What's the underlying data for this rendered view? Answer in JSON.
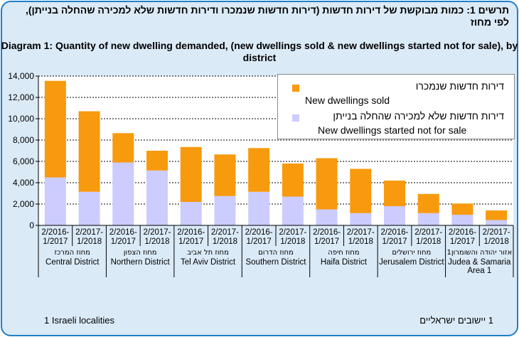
{
  "title_he": "תרשים 1: כמות מבוקשת של דירות חדשות (דירות חדשות שנמכרו ודירות חדשות שלא למכירה שהחלה בנייתן), לפי מחוז",
  "title_en": "Diagram 1:  Quantity of new dwelling demanded, (new dwellings sold & new dwellings started not for sale), by district",
  "footnote_en": "1 Israeli localities",
  "footnote_he": "1 יישובים  ישראליים",
  "colors": {
    "sold": "#f79a0e",
    "not_for_sale": "#ccccff",
    "frame": "#1f7fc8",
    "background": "#dbeaf7"
  },
  "chart_data": {
    "type": "bar",
    "stacked": true,
    "title": "Diagram 1:  Quantity of new dwelling demanded, (new dwellings sold & new dwellings started not for sale), by district",
    "ylim": [
      0,
      14000
    ],
    "yticks": [
      "0",
      "2,000",
      "4,000",
      "6,000",
      "8,000",
      "10,000",
      "12,000",
      "14,000"
    ],
    "grid": true,
    "legend_position": "top-right",
    "categories": [
      "2/2016-\n1/2017",
      "2/2017-\n1/2018",
      "2/2016-\n1/2017",
      "2/2017-\n1/2018",
      "2/2016-\n1/2017",
      "2/2017-\n1/2018",
      "2/2016-\n1/2017",
      "2/2017-\n1/2018",
      "2/2016-\n1/2017",
      "2/2017-\n1/2018",
      "2/2016-\n1/2017",
      "2/2017-\n1/2018",
      "2/2016-\n1/2017",
      "2/2017-\n1/2018"
    ],
    "groups": [
      {
        "he": "מחוז המרכז",
        "en": "Central District"
      },
      {
        "he": "מחוז הצפון",
        "en": "Northern District"
      },
      {
        "he": "מחוז תל אביב",
        "en": "Tel Aviv District"
      },
      {
        "he": "מחוז הדרום",
        "en": "Southern District"
      },
      {
        "he": "מחוז חיפה",
        "en": "Haifa District"
      },
      {
        "he": "מחוז ירושלים",
        "en": "Jerusalem District"
      },
      {
        "he": "אזור יהודה והשומרון1",
        "en": "Judea & Samaria Area 1"
      }
    ],
    "series": [
      {
        "name_he": "דירות חדשות שלא למכירה שהחלה בנייתן",
        "name": "New dwellings started not for sale",
        "values": [
          4500,
          3150,
          5900,
          5150,
          2200,
          2750,
          3150,
          2700,
          1500,
          1150,
          1800,
          1150,
          1000,
          500
        ]
      },
      {
        "name_he": "דירות חדשות שנמכרו",
        "name": "New dwellings sold",
        "values": [
          9050,
          7550,
          2750,
          1850,
          5150,
          3900,
          4100,
          3100,
          4800,
          4150,
          2400,
          1800,
          1050,
          900
        ]
      }
    ]
  }
}
